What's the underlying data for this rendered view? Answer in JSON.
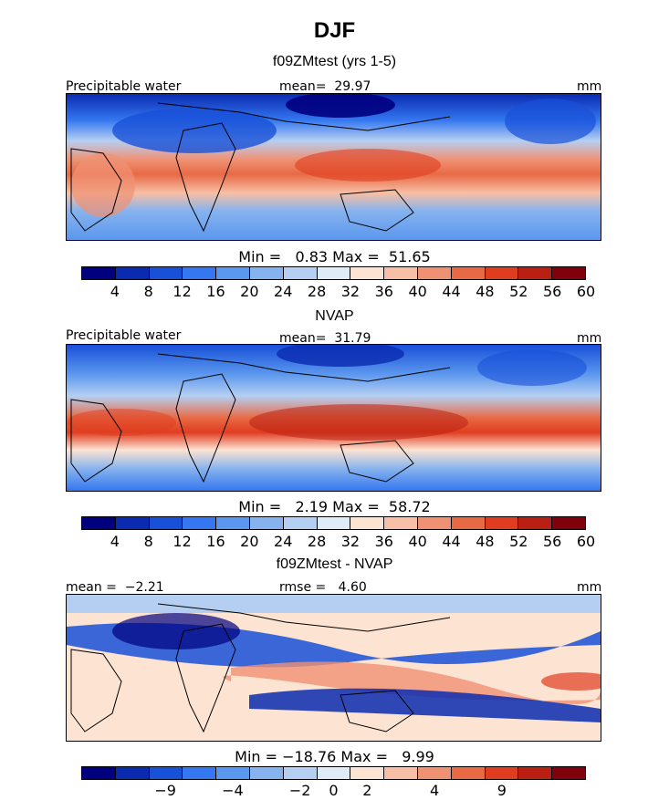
{
  "figure": {
    "title": "DJF"
  },
  "chart_data": [
    {
      "type": "heatmap",
      "title": "f09ZMtest (yrs 1-5)",
      "left_label": "Precipitable water",
      "center_label": "mean=  29.97",
      "right_label": "mm",
      "min_max": "Min =   0.83 Max =  51.65",
      "colorbar_levels": [
        "4",
        "8",
        "12",
        "16",
        "20",
        "24",
        "28",
        "32",
        "36",
        "40",
        "44",
        "48",
        "52",
        "56",
        "60"
      ],
      "colorbar_colors": [
        "#00007f",
        "#0a2bb0",
        "#1850d8",
        "#3477f0",
        "#5b97ee",
        "#86b3ee",
        "#b5cff2",
        "#e0ebf8",
        "#fce3d2",
        "#f7bfa5",
        "#f09174",
        "#e86a45",
        "#e03d20",
        "#b92013",
        "#80000b"
      ]
    },
    {
      "type": "heatmap",
      "title": "NVAP",
      "left_label": "Precipitable water",
      "center_label": "mean=  31.79",
      "right_label": "mm",
      "min_max": "Min =   2.19 Max =  58.72",
      "colorbar_levels": [
        "4",
        "8",
        "12",
        "16",
        "20",
        "24",
        "28",
        "32",
        "36",
        "40",
        "44",
        "48",
        "52",
        "56",
        "60"
      ],
      "colorbar_colors": [
        "#00007f",
        "#0a2bb0",
        "#1850d8",
        "#3477f0",
        "#5b97ee",
        "#86b3ee",
        "#b5cff2",
        "#e0ebf8",
        "#fce3d2",
        "#f7bfa5",
        "#f09174",
        "#e86a45",
        "#e03d20",
        "#b92013",
        "#80000b"
      ]
    },
    {
      "type": "heatmap",
      "title": "f09ZMtest - NVAP",
      "left_label": "mean =  −2.21",
      "center_label": "rmse =   4.60",
      "right_label": "mm",
      "min_max": "Min = −18.76 Max =   9.99",
      "colorbar_levels": [
        "−9",
        "−4",
        "−2",
        "0",
        "2",
        "4",
        "9"
      ],
      "colorbar_colors": [
        "#00007f",
        "#0a2bb0",
        "#1850d8",
        "#3477f0",
        "#5b97ee",
        "#86b3ee",
        "#b5cff2",
        "#e0ebf8",
        "#fce3d2",
        "#f7bfa5",
        "#f09174",
        "#e86a45",
        "#e03d20",
        "#b92013",
        "#80000b"
      ]
    }
  ]
}
